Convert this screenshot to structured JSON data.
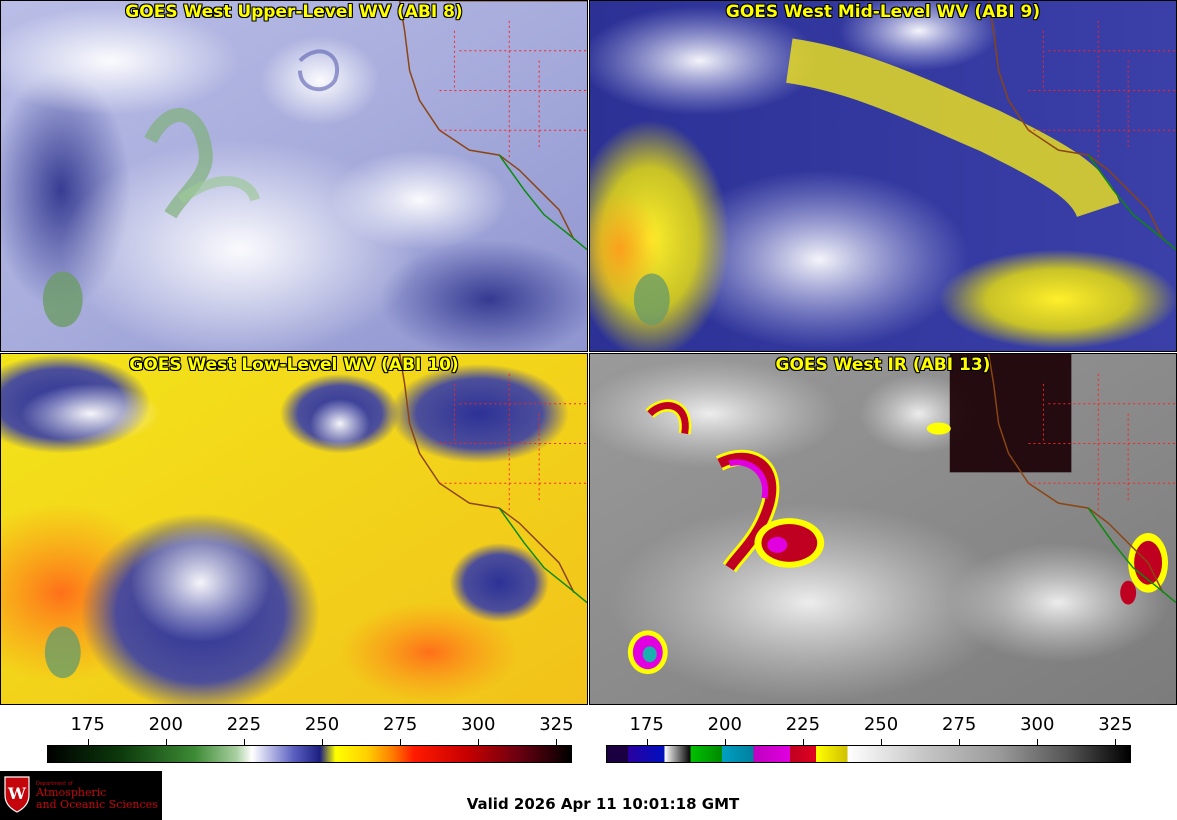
{
  "panels": [
    {
      "title": "GOES West Upper-Level WV (ABI 8)"
    },
    {
      "title": "GOES West Mid-Level WV (ABI 9)"
    },
    {
      "title": "GOES West Low-Level WV (ABI 10)"
    },
    {
      "title": "GOES West IR (ABI 13)"
    }
  ],
  "colorbars": {
    "left": {
      "ticks": [
        "175",
        "200",
        "225",
        "250",
        "275",
        "300",
        "325"
      ],
      "min": 162,
      "max": 330
    },
    "right": {
      "ticks": [
        "175",
        "200",
        "225",
        "250",
        "275",
        "300",
        "325"
      ],
      "min": 162,
      "max": 330
    }
  },
  "logo": {
    "dept_line1": "Department of",
    "name_line1": "Atmospheric",
    "name_line2": "and Oceanic Sciences"
  },
  "valid_time": "Valid 2026 Apr 11 10:01:18 GMT",
  "colors": {
    "title_yellow": "#ffff00",
    "uw_red": "#c5050c",
    "coast_brown": "#8b4513",
    "state_red": "#ff2020",
    "mexico_green": "#0a8a0a"
  }
}
